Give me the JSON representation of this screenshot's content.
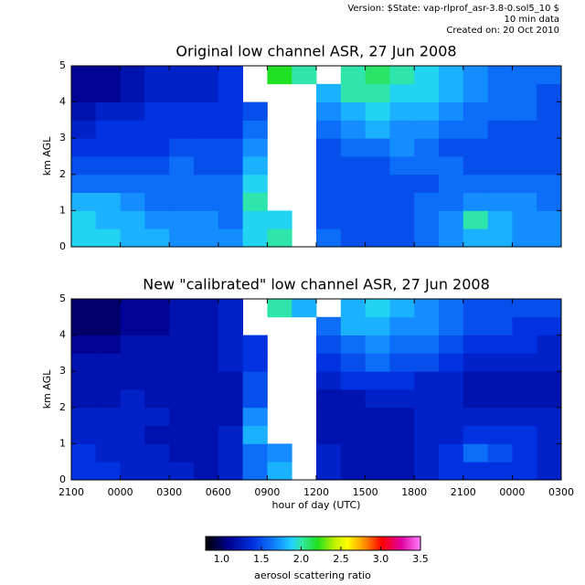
{
  "header": {
    "version": "Version: $State: vap-rlprof_asr-3.8-0.sol5_10 $",
    "resolution": "10 min data",
    "created": "Created on: 20 Oct 2010"
  },
  "colorbar": {
    "label": "aerosol scattering ratio",
    "clim": [
      0.8,
      3.5
    ],
    "ticks": [
      {
        "value": 1,
        "label": "1.0"
      },
      1.5,
      {
        "value": 2,
        "label": "2.0"
      },
      2.5,
      {
        "value": 3,
        "label": "3.0"
      },
      3.5
    ]
  },
  "chart_data": [
    {
      "type": "heatmap",
      "title": "Original low channel ASR, 27 Jun 2008",
      "ylabel": "km AGL",
      "xlim": [
        0,
        30
      ],
      "ylim": [
        0,
        5
      ],
      "yticks": [
        0,
        1,
        2,
        3,
        4,
        5
      ],
      "z": [
        [
          1.9,
          1.9,
          1.8,
          1.8,
          1.7,
          1.7,
          1.7,
          1.9,
          2.0,
          null,
          1.6,
          1.5,
          1.5,
          1.5,
          1.6,
          1.7,
          1.8,
          1.8,
          1.7,
          1.7
        ],
        [
          1.9,
          1.8,
          1.8,
          1.7,
          1.7,
          1.7,
          1.6,
          1.9,
          1.9,
          null,
          1.5,
          1.5,
          1.5,
          1.5,
          1.6,
          1.7,
          2.0,
          1.8,
          1.7,
          1.7
        ],
        [
          1.8,
          1.8,
          1.7,
          1.6,
          1.6,
          1.6,
          1.6,
          2.0,
          null,
          null,
          1.5,
          1.5,
          1.5,
          1.5,
          1.6,
          1.6,
          1.7,
          1.7,
          1.7,
          1.6
        ],
        [
          1.6,
          1.6,
          1.6,
          1.6,
          1.6,
          1.6,
          1.6,
          1.9,
          null,
          null,
          1.5,
          1.5,
          1.5,
          1.5,
          1.5,
          1.6,
          1.6,
          1.6,
          1.6,
          1.6
        ],
        [
          1.5,
          1.5,
          1.5,
          1.5,
          1.6,
          1.5,
          1.5,
          1.8,
          null,
          null,
          1.5,
          1.5,
          1.5,
          1.6,
          1.6,
          1.6,
          1.5,
          1.5,
          1.5,
          1.5
        ],
        [
          1.4,
          1.4,
          1.4,
          1.4,
          1.5,
          1.5,
          1.5,
          1.7,
          null,
          null,
          1.5,
          1.6,
          1.6,
          1.7,
          1.6,
          1.5,
          1.5,
          1.5,
          1.5,
          1.5
        ],
        [
          1.3,
          1.4,
          1.4,
          1.4,
          1.4,
          1.4,
          1.4,
          1.6,
          null,
          null,
          1.6,
          1.7,
          1.8,
          1.7,
          1.7,
          1.6,
          1.6,
          1.5,
          1.5,
          1.5
        ],
        [
          1.2,
          1.3,
          1.3,
          1.4,
          1.4,
          1.4,
          1.4,
          1.5,
          null,
          null,
          1.7,
          1.8,
          1.9,
          1.8,
          1.8,
          1.7,
          1.6,
          1.6,
          1.6,
          1.5
        ],
        [
          1.1,
          1.1,
          1.2,
          1.3,
          1.3,
          1.3,
          1.4,
          null,
          null,
          null,
          1.8,
          2.0,
          2.0,
          1.9,
          1.9,
          1.8,
          1.7,
          1.6,
          1.6,
          1.5
        ],
        [
          1.1,
          1.1,
          1.2,
          1.3,
          1.3,
          1.3,
          1.4,
          null,
          2.2,
          2.0,
          null,
          2.0,
          2.1,
          2.0,
          1.9,
          1.8,
          1.7,
          1.6,
          1.6,
          1.6
        ]
      ]
    },
    {
      "type": "heatmap",
      "title": "New \"calibrated\" low channel ASR, 27 Jun 2008",
      "ylabel": "km AGL",
      "xlabel": "hour of day (UTC)",
      "xlim": [
        0,
        30
      ],
      "ylim": [
        0,
        5
      ],
      "yticks": [
        0,
        1,
        2,
        3,
        4,
        5
      ],
      "xticks": [
        {
          "value": 0,
          "label": "2100"
        },
        {
          "value": 3,
          "label": "0000"
        },
        {
          "value": 6,
          "label": "0300"
        },
        {
          "value": 9,
          "label": "0600"
        },
        {
          "value": 12,
          "label": "0900"
        },
        {
          "value": 15,
          "label": "1200"
        },
        {
          "value": 18,
          "label": "1500"
        },
        {
          "value": 21,
          "label": "1800"
        },
        {
          "value": 24,
          "label": "2100"
        },
        {
          "value": 27,
          "label": "0000"
        },
        {
          "value": 30,
          "label": "0300"
        }
      ],
      "z": [
        [
          1.4,
          1.4,
          1.3,
          1.3,
          1.3,
          1.2,
          1.3,
          1.6,
          1.8,
          null,
          1.3,
          1.2,
          1.2,
          1.2,
          1.3,
          1.4,
          1.4,
          1.4,
          1.4,
          1.3
        ],
        [
          1.4,
          1.3,
          1.3,
          1.3,
          1.2,
          1.2,
          1.3,
          1.6,
          1.7,
          null,
          1.3,
          1.2,
          1.2,
          1.2,
          1.3,
          1.4,
          1.6,
          1.5,
          1.4,
          1.3
        ],
        [
          1.3,
          1.3,
          1.3,
          1.2,
          1.2,
          1.2,
          1.3,
          1.8,
          null,
          null,
          1.2,
          1.2,
          1.2,
          1.2,
          1.3,
          1.3,
          1.4,
          1.4,
          1.4,
          1.3
        ],
        [
          1.3,
          1.3,
          1.3,
          1.3,
          1.2,
          1.2,
          1.2,
          1.7,
          null,
          null,
          1.2,
          1.2,
          1.2,
          1.2,
          1.3,
          1.3,
          1.3,
          1.3,
          1.3,
          1.3
        ],
        [
          1.2,
          1.2,
          1.3,
          1.2,
          1.2,
          1.2,
          1.2,
          1.5,
          null,
          null,
          1.2,
          1.2,
          1.3,
          1.3,
          1.3,
          1.3,
          1.2,
          1.2,
          1.2,
          1.2
        ],
        [
          1.2,
          1.2,
          1.2,
          1.2,
          1.2,
          1.2,
          1.2,
          1.5,
          null,
          null,
          1.3,
          1.4,
          1.4,
          1.4,
          1.3,
          1.3,
          1.2,
          1.2,
          1.2,
          1.2
        ],
        [
          1.2,
          1.2,
          1.2,
          1.2,
          1.2,
          1.2,
          1.3,
          1.4,
          null,
          null,
          1.4,
          1.5,
          1.6,
          1.5,
          1.5,
          1.4,
          1.3,
          1.3,
          1.3,
          1.3
        ],
        [
          1.1,
          1.1,
          1.2,
          1.2,
          1.2,
          1.2,
          1.3,
          1.4,
          null,
          null,
          1.5,
          1.6,
          1.7,
          1.6,
          1.6,
          1.5,
          1.4,
          1.4,
          1.4,
          1.3
        ],
        [
          1.0,
          1.0,
          1.1,
          1.1,
          1.2,
          1.2,
          1.3,
          null,
          null,
          null,
          1.6,
          1.8,
          1.8,
          1.7,
          1.7,
          1.6,
          1.5,
          1.5,
          1.4,
          1.4
        ],
        [
          1.0,
          1.0,
          1.1,
          1.1,
          1.2,
          1.2,
          1.3,
          null,
          2.0,
          1.8,
          null,
          1.8,
          1.9,
          1.8,
          1.7,
          1.6,
          1.5,
          1.5,
          1.5,
          1.5
        ]
      ]
    }
  ]
}
